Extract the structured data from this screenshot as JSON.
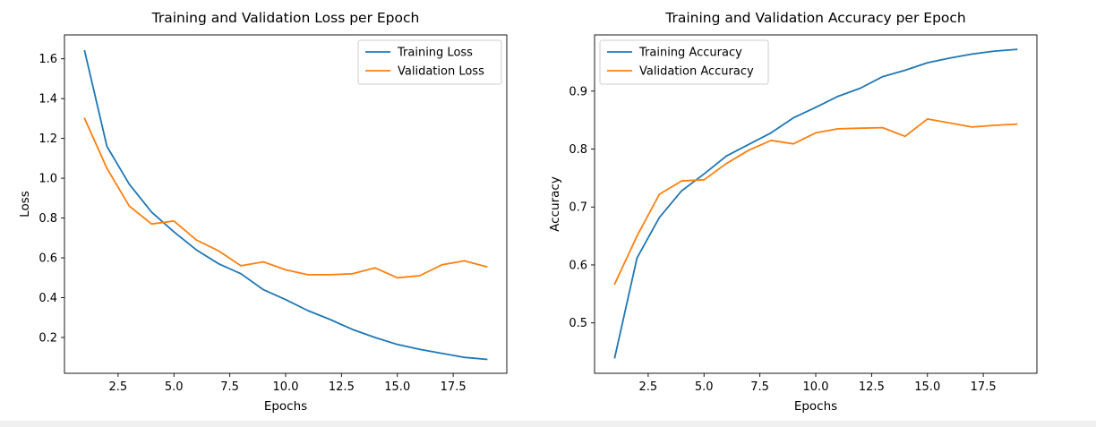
{
  "chart_data": [
    {
      "type": "line",
      "title": "Training and Validation Loss per Epoch",
      "xlabel": "Epochs",
      "ylabel": "Loss",
      "xlim": [
        0.1,
        19.9
      ],
      "ylim": [
        0.02,
        1.72
      ],
      "xticks": [
        2.5,
        5.0,
        7.5,
        10.0,
        12.5,
        15.0,
        17.5
      ],
      "xtick_labels": [
        "2.5",
        "5.0",
        "7.5",
        "10.0",
        "12.5",
        "15.0",
        "17.5"
      ],
      "yticks": [
        0.2,
        0.4,
        0.6,
        0.8,
        1.0,
        1.2,
        1.4,
        1.6
      ],
      "ytick_labels": [
        "0.2",
        "0.4",
        "0.6",
        "0.8",
        "1.0",
        "1.2",
        "1.4",
        "1.6"
      ],
      "grid": false,
      "legend_position": "top-right",
      "x": [
        1,
        2,
        3,
        4,
        5,
        6,
        7,
        8,
        9,
        10,
        11,
        12,
        13,
        14,
        15,
        16,
        17,
        18,
        19
      ],
      "series": [
        {
          "name": "Training Loss",
          "color": "#1f77b4",
          "values": [
            1.64,
            1.16,
            0.97,
            0.83,
            0.73,
            0.64,
            0.57,
            0.52,
            0.44,
            0.39,
            0.335,
            0.29,
            0.24,
            0.2,
            0.165,
            0.14,
            0.12,
            0.1,
            0.09
          ]
        },
        {
          "name": "Validation Loss",
          "color": "#ff7f0e",
          "values": [
            1.3,
            1.05,
            0.86,
            0.77,
            0.785,
            0.69,
            0.635,
            0.56,
            0.58,
            0.54,
            0.515,
            0.515,
            0.52,
            0.55,
            0.5,
            0.51,
            0.565,
            0.585,
            0.555
          ]
        }
      ]
    },
    {
      "type": "line",
      "title": "Training and Validation Accuracy per Epoch",
      "xlabel": "Epochs",
      "ylabel": "Accuracy",
      "xlim": [
        0.1,
        19.9
      ],
      "ylim": [
        0.413,
        0.997
      ],
      "xticks": [
        2.5,
        5.0,
        7.5,
        10.0,
        12.5,
        15.0,
        17.5
      ],
      "xtick_labels": [
        "2.5",
        "5.0",
        "7.5",
        "10.0",
        "12.5",
        "15.0",
        "17.5"
      ],
      "yticks": [
        0.5,
        0.6,
        0.7,
        0.8,
        0.9
      ],
      "ytick_labels": [
        "0.5",
        "0.6",
        "0.7",
        "0.8",
        "0.9"
      ],
      "grid": false,
      "legend_position": "top-left",
      "x": [
        1,
        2,
        3,
        4,
        5,
        6,
        7,
        8,
        9,
        10,
        11,
        12,
        13,
        14,
        15,
        16,
        17,
        18,
        19
      ],
      "series": [
        {
          "name": "Training Accuracy",
          "color": "#1f77b4",
          "values": [
            0.44,
            0.612,
            0.682,
            0.728,
            0.757,
            0.788,
            0.808,
            0.828,
            0.854,
            0.872,
            0.891,
            0.905,
            0.925,
            0.936,
            0.949,
            0.957,
            0.964,
            0.969,
            0.972
          ]
        },
        {
          "name": "Validation Accuracy",
          "color": "#ff7f0e",
          "values": [
            0.567,
            0.65,
            0.722,
            0.745,
            0.747,
            0.775,
            0.798,
            0.815,
            0.809,
            0.828,
            0.835,
            0.836,
            0.837,
            0.822,
            0.852,
            0.845,
            0.838,
            0.841,
            0.843
          ]
        }
      ]
    }
  ]
}
